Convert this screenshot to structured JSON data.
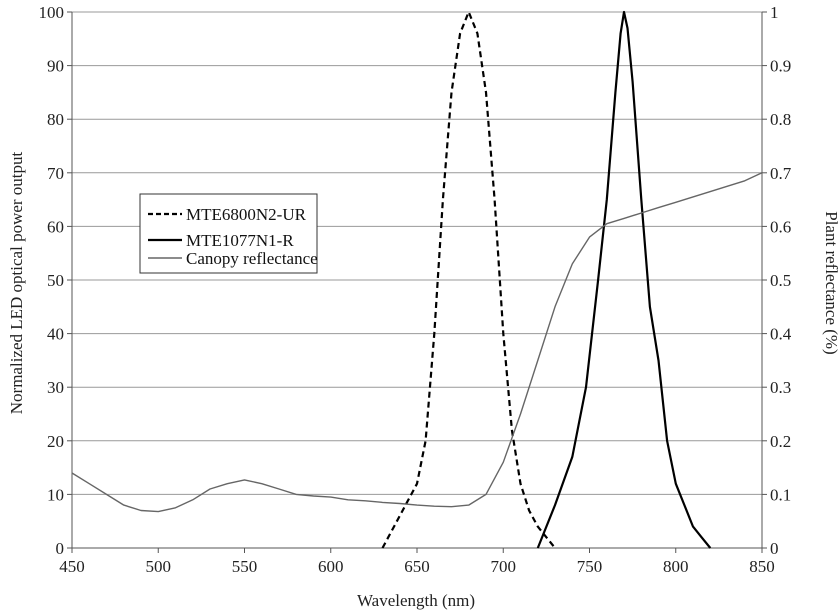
{
  "chart_data": {
    "type": "line",
    "title": "",
    "xlabel": "Wavelength (nm)",
    "ylabel_left": "Normalized LED optical power output",
    "ylabel_right": "Plant reflectance (%)",
    "xlim": [
      450,
      850
    ],
    "ylim_left": [
      0,
      100
    ],
    "ylim_right": [
      0,
      1
    ],
    "x_ticks": [
      "450",
      "500",
      "550",
      "600",
      "650",
      "700",
      "750",
      "800",
      "850"
    ],
    "y_left_ticks": [
      "0",
      "10",
      "20",
      "30",
      "40",
      "50",
      "60",
      "70",
      "80",
      "90",
      "100"
    ],
    "y_right_ticks": [
      "0",
      "0.1",
      "0.2",
      "0.3",
      "0.4",
      "0.5",
      "0.6",
      "0.7",
      "0.8",
      "0.9",
      "1"
    ],
    "grid": "horizontal",
    "legend_position": "left-middle",
    "series": [
      {
        "name": "MTE6800N2-UR",
        "axis": "left",
        "style": "dashed",
        "color": "#000000",
        "points": [
          [
            630,
            0
          ],
          [
            640,
            6
          ],
          [
            650,
            12
          ],
          [
            655,
            20
          ],
          [
            660,
            40
          ],
          [
            665,
            65
          ],
          [
            670,
            85
          ],
          [
            675,
            96
          ],
          [
            680,
            100
          ],
          [
            685,
            96
          ],
          [
            690,
            85
          ],
          [
            695,
            65
          ],
          [
            700,
            40
          ],
          [
            705,
            22
          ],
          [
            710,
            12
          ],
          [
            715,
            7
          ],
          [
            720,
            4
          ],
          [
            725,
            2
          ],
          [
            730,
            0
          ]
        ]
      },
      {
        "name": "MTE1077N1-R",
        "axis": "left",
        "style": "solid",
        "color": "#000000",
        "points": [
          [
            720,
            0
          ],
          [
            730,
            8
          ],
          [
            740,
            17
          ],
          [
            748,
            30
          ],
          [
            755,
            50
          ],
          [
            760,
            65
          ],
          [
            765,
            85
          ],
          [
            768,
            96
          ],
          [
            770,
            100
          ],
          [
            772,
            97
          ],
          [
            775,
            87
          ],
          [
            780,
            65
          ],
          [
            785,
            45
          ],
          [
            790,
            35
          ],
          [
            795,
            20
          ],
          [
            800,
            12
          ],
          [
            805,
            8
          ],
          [
            810,
            4
          ],
          [
            815,
            2
          ],
          [
            820,
            0
          ]
        ]
      },
      {
        "name": "Canopy reflectance",
        "axis": "right",
        "style": "solid",
        "color": "#666666",
        "points": [
          [
            450,
            0.14
          ],
          [
            460,
            0.12
          ],
          [
            470,
            0.1
          ],
          [
            480,
            0.08
          ],
          [
            490,
            0.07
          ],
          [
            500,
            0.068
          ],
          [
            510,
            0.075
          ],
          [
            520,
            0.09
          ],
          [
            530,
            0.11
          ],
          [
            540,
            0.12
          ],
          [
            550,
            0.127
          ],
          [
            560,
            0.12
          ],
          [
            570,
            0.11
          ],
          [
            580,
            0.1
          ],
          [
            590,
            0.097
          ],
          [
            600,
            0.095
          ],
          [
            610,
            0.09
          ],
          [
            620,
            0.088
          ],
          [
            630,
            0.085
          ],
          [
            640,
            0.083
          ],
          [
            650,
            0.08
          ],
          [
            660,
            0.078
          ],
          [
            670,
            0.077
          ],
          [
            680,
            0.08
          ],
          [
            690,
            0.1
          ],
          [
            700,
            0.16
          ],
          [
            710,
            0.25
          ],
          [
            720,
            0.35
          ],
          [
            730,
            0.45
          ],
          [
            740,
            0.53
          ],
          [
            750,
            0.58
          ],
          [
            760,
            0.605
          ],
          [
            770,
            0.615
          ],
          [
            780,
            0.625
          ],
          [
            790,
            0.635
          ],
          [
            800,
            0.645
          ],
          [
            810,
            0.655
          ],
          [
            820,
            0.665
          ],
          [
            830,
            0.675
          ],
          [
            840,
            0.685
          ],
          [
            850,
            0.7
          ]
        ]
      }
    ]
  }
}
